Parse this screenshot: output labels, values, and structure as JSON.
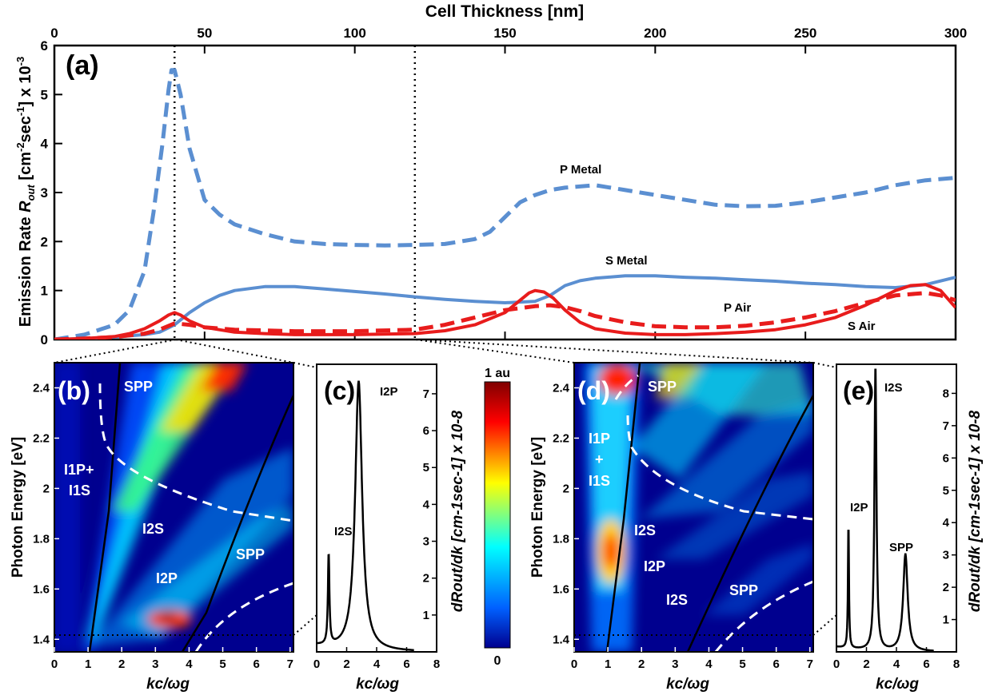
{
  "chart_data": [
    {
      "panel": "(a)",
      "type": "line",
      "xlabel": "Cell Thickness [nm]",
      "ylabel_prefix": "Emission Rate ",
      "ylabel_var": "R",
      "ylabel_sub": "out",
      "ylabel_unit": " [cm-2sec-1] x 10-3",
      "xlim": [
        0,
        300
      ],
      "ylim": [
        0,
        6
      ],
      "xticks": [
        0,
        50,
        100,
        150,
        200,
        250,
        300
      ],
      "yticks": [
        0,
        1,
        2,
        3,
        4,
        5,
        6
      ],
      "vlines": [
        40,
        120
      ],
      "series": [
        {
          "name": "P Metal",
          "color": "#5b8fd1",
          "dash": true,
          "x": [
            0,
            10,
            20,
            25,
            30,
            33,
            36,
            38,
            39,
            40,
            42,
            45,
            50,
            55,
            60,
            70,
            80,
            90,
            100,
            110,
            120,
            130,
            140,
            145,
            150,
            155,
            160,
            165,
            170,
            180,
            190,
            200,
            210,
            220,
            230,
            240,
            250,
            260,
            270,
            280,
            290,
            300
          ],
          "y": [
            0,
            0.1,
            0.3,
            0.6,
            1.4,
            2.6,
            4.0,
            5.1,
            5.5,
            5.5,
            5.0,
            3.9,
            2.85,
            2.55,
            2.35,
            2.15,
            2.0,
            1.95,
            1.93,
            1.92,
            1.93,
            1.95,
            2.05,
            2.2,
            2.5,
            2.8,
            2.95,
            3.05,
            3.1,
            3.15,
            3.05,
            2.95,
            2.85,
            2.75,
            2.72,
            2.73,
            2.8,
            2.9,
            3.0,
            3.15,
            3.25,
            3.3
          ]
        },
        {
          "name": "S Metal",
          "color": "#5b8fd1",
          "dash": false,
          "x": [
            0,
            10,
            20,
            30,
            35,
            40,
            45,
            50,
            55,
            60,
            70,
            80,
            90,
            100,
            110,
            120,
            130,
            140,
            150,
            160,
            165,
            170,
            175,
            180,
            190,
            200,
            210,
            220,
            230,
            240,
            250,
            260,
            270,
            280,
            290,
            300
          ],
          "y": [
            0,
            0.02,
            0.05,
            0.1,
            0.15,
            0.3,
            0.55,
            0.75,
            0.9,
            1.0,
            1.08,
            1.08,
            1.03,
            0.98,
            0.93,
            0.87,
            0.82,
            0.78,
            0.75,
            0.78,
            0.9,
            1.1,
            1.2,
            1.25,
            1.3,
            1.3,
            1.27,
            1.25,
            1.22,
            1.19,
            1.15,
            1.12,
            1.08,
            1.06,
            1.12,
            1.27
          ]
        },
        {
          "name": "P Air",
          "color": "#e81c1c",
          "dash": false,
          "x": [
            0,
            10,
            20,
            25,
            30,
            35,
            38,
            40,
            42,
            45,
            50,
            60,
            70,
            80,
            100,
            120,
            130,
            140,
            150,
            155,
            158,
            160,
            163,
            166,
            170,
            175,
            180,
            190,
            200,
            210,
            220,
            230,
            240,
            250,
            260,
            270,
            275,
            280,
            285,
            290,
            295,
            300
          ],
          "y": [
            0,
            0.02,
            0.06,
            0.12,
            0.22,
            0.38,
            0.5,
            0.55,
            0.5,
            0.38,
            0.25,
            0.15,
            0.12,
            0.1,
            0.1,
            0.12,
            0.18,
            0.3,
            0.55,
            0.8,
            0.95,
            1.0,
            0.97,
            0.85,
            0.6,
            0.35,
            0.22,
            0.13,
            0.1,
            0.1,
            0.12,
            0.15,
            0.2,
            0.3,
            0.45,
            0.7,
            0.85,
            1.0,
            1.1,
            1.12,
            1.0,
            0.65
          ]
        },
        {
          "name": "S Air",
          "color": "#e81c1c",
          "dash": true,
          "x": [
            0,
            10,
            20,
            30,
            35,
            40,
            45,
            50,
            60,
            80,
            100,
            120,
            130,
            140,
            150,
            160,
            165,
            170,
            175,
            180,
            190,
            200,
            210,
            220,
            230,
            240,
            250,
            260,
            270,
            280,
            290,
            295,
            300
          ],
          "y": [
            0,
            0.02,
            0.05,
            0.12,
            0.2,
            0.33,
            0.3,
            0.25,
            0.2,
            0.17,
            0.17,
            0.2,
            0.3,
            0.45,
            0.6,
            0.68,
            0.7,
            0.66,
            0.58,
            0.48,
            0.35,
            0.27,
            0.25,
            0.25,
            0.28,
            0.35,
            0.45,
            0.58,
            0.75,
            0.9,
            0.95,
            0.9,
            0.8
          ]
        }
      ]
    },
    {
      "panel": "(b)",
      "type": "heatmap",
      "xlabel": "kc/ωg",
      "ylabel": "Photon Energy [eV]",
      "xlim": [
        0,
        7.1
      ],
      "ylim": [
        1.35,
        2.5
      ],
      "xticks": [
        0,
        1,
        2,
        3,
        4,
        5,
        6,
        7
      ],
      "yticks": [
        1.4,
        1.6,
        1.8,
        2.0,
        2.2,
        2.4
      ],
      "ytick_labels": [
        "1.4",
        "1.6",
        "1.8",
        "2",
        "2.2",
        "2.4"
      ],
      "labels": {
        "spp_top": "SPP",
        "spp_bottom": "SPP",
        "i1_mix_a": "I1P+",
        "i1_mix_b": "I1S",
        "i2s": "I2S",
        "i2p": "I2P"
      }
    },
    {
      "panel": "(c)",
      "type": "line",
      "xlabel": "kc/ωg",
      "ylabel": "dRout/dk [cm-1sec-1] x 10-8",
      "xlim": [
        0,
        8
      ],
      "ylim": [
        0,
        7.8
      ],
      "xticks": [
        0,
        2,
        4,
        6,
        8
      ],
      "yticks": [
        1,
        2,
        3,
        4,
        5,
        6,
        7
      ],
      "peaks": [
        {
          "label": "I2S",
          "x": 0.8,
          "y": 2.45
        },
        {
          "label": "I2P",
          "x": 2.8,
          "y": 7.3
        }
      ]
    },
    {
      "panel": "(d)",
      "type": "heatmap",
      "xlabel": "kc/ωg",
      "ylabel": "Photon Energy [eV]",
      "xlim": [
        0,
        7.1
      ],
      "ylim": [
        1.35,
        2.5
      ],
      "xticks": [
        0,
        1,
        2,
        3,
        4,
        5,
        6,
        7
      ],
      "yticks": [
        1.4,
        1.6,
        1.8,
        2.0,
        2.2,
        2.4
      ],
      "ytick_labels": [
        "1.4",
        "1.6",
        "1.8",
        "2",
        "2.2",
        "2.4"
      ],
      "labels": {
        "spp_top": "SPP",
        "spp_bottom": "SPP",
        "i1p": "I1P",
        "plus": "+",
        "i1s": "I1S",
        "i2s_a": "I2S",
        "i2p": "I2P",
        "i2s_b": "I2S"
      }
    },
    {
      "panel": "(e)",
      "type": "line",
      "xlabel": "kc/ωg",
      "ylabel": "dRout/dk [cm-1sec-1] x 10-8",
      "xlim": [
        0,
        8
      ],
      "ylim": [
        0,
        8.9
      ],
      "xticks": [
        0,
        2,
        4,
        6,
        8
      ],
      "yticks": [
        1,
        2,
        3,
        4,
        5,
        6,
        7,
        8
      ],
      "peaks": [
        {
          "label": "I2P",
          "x": 0.8,
          "y": 3.85
        },
        {
          "label": "I2S",
          "x": 2.6,
          "y": 8.8
        },
        {
          "label": "SPP",
          "x": 4.6,
          "y": 3.0
        }
      ]
    }
  ],
  "colorbar": {
    "top_label": "1 au",
    "bottom_label": "0",
    "colors": [
      "#800000",
      "#ff0000",
      "#ffff00",
      "#00ffff",
      "#0080ff",
      "#00008f"
    ]
  }
}
